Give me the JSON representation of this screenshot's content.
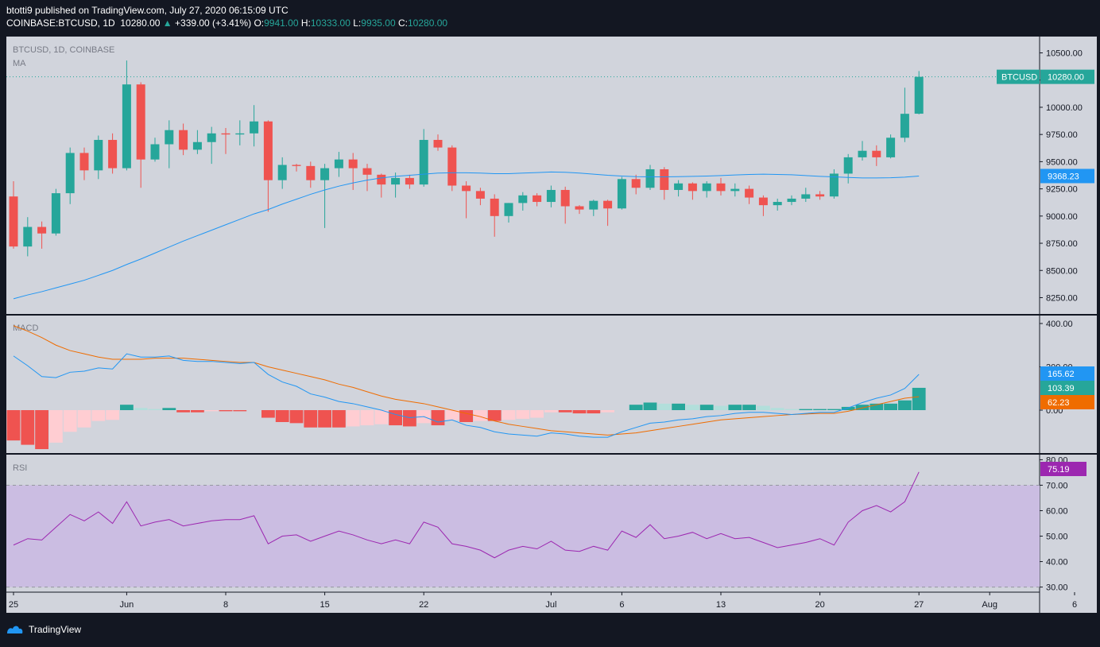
{
  "header": {
    "line1": "btotti9 published on TradingView.com, July 27, 2020 06:15:09 UTC",
    "symbol": "COINBASE:BTCUSD, 1D",
    "last": "10280.00",
    "change": "+339.00 (+3.41%)",
    "o_label": "O:",
    "o": "9941.00",
    "h_label": "H:",
    "h": "10333.00",
    "l_label": "L:",
    "l": "9935.00",
    "c_label": "C:",
    "c": "10280.00"
  },
  "footer": {
    "brand": "TradingView"
  },
  "colors": {
    "up": "#26a69a",
    "down": "#ef5350",
    "bg": "#d1d4dc",
    "frame": "#131722",
    "ma": "#2196f3",
    "signal": "#ef6c00",
    "rsi": "#9c27b0",
    "hist_up_strong": "#26a69a",
    "hist_up_weak": "#b2dfdb",
    "hist_down_strong": "#ef5350",
    "hist_down_weak": "#ffcdd2",
    "rsi_band": "#cbbde2"
  },
  "chart_data": [
    {
      "type": "candlestick",
      "title": "BTCUSD, 1D, COINBASE",
      "indicator_label": "MA",
      "symbol_tag": "BTCUSD",
      "last_price_label": "10280.00",
      "ma_label": "9368.23",
      "ylim": [
        8100,
        10650
      ],
      "yticks": [
        8250,
        8500,
        8750,
        9000,
        9250,
        9500,
        9750,
        10000,
        10250,
        10500
      ],
      "ytick_labels": [
        "8250.00",
        "8500.00",
        "8750.00",
        "9000.00",
        "9250.00",
        "9500.00",
        "9750.00",
        "10000.00",
        "10250.00",
        "10500.00"
      ],
      "x_labels": [
        "25",
        "Jun",
        "8",
        "15",
        "22",
        "Jul",
        "6",
        "13",
        "20",
        "27",
        "Aug",
        "6"
      ],
      "x_label_index": [
        0,
        8,
        15,
        22,
        29,
        38,
        43,
        50,
        57,
        64,
        69,
        75
      ],
      "ohlc": [
        [
          9180,
          9320,
          8700,
          8720
        ],
        [
          8720,
          8990,
          8630,
          8900
        ],
        [
          8900,
          8950,
          8700,
          8840
        ],
        [
          8840,
          9250,
          8820,
          9210
        ],
        [
          9210,
          9630,
          9110,
          9580
        ],
        [
          9580,
          9630,
          9330,
          9420
        ],
        [
          9420,
          9740,
          9340,
          9700
        ],
        [
          9700,
          9760,
          9390,
          9440
        ],
        [
          9440,
          10430,
          9420,
          10210
        ],
        [
          10210,
          10230,
          9260,
          9520
        ],
        [
          9520,
          9720,
          9500,
          9660
        ],
        [
          9660,
          9880,
          9440,
          9790
        ],
        [
          9790,
          9850,
          9560,
          9610
        ],
        [
          9610,
          9790,
          9570,
          9680
        ],
        [
          9680,
          9820,
          9480,
          9760
        ],
        [
          9760,
          9810,
          9570,
          9750
        ],
        [
          9750,
          9880,
          9650,
          9760
        ],
        [
          9760,
          10020,
          9640,
          9870
        ],
        [
          9870,
          9880,
          9040,
          9330
        ],
        [
          9330,
          9540,
          9250,
          9470
        ],
        [
          9470,
          9480,
          9410,
          9460
        ],
        [
          9460,
          9500,
          9260,
          9330
        ],
        [
          9330,
          9480,
          8890,
          9440
        ],
        [
          9440,
          9590,
          9360,
          9520
        ],
        [
          9520,
          9580,
          9240,
          9440
        ],
        [
          9440,
          9480,
          9230,
          9380
        ],
        [
          9380,
          9390,
          9170,
          9290
        ],
        [
          9290,
          9400,
          9170,
          9350
        ],
        [
          9350,
          9380,
          9250,
          9290
        ],
        [
          9290,
          9800,
          9270,
          9700
        ],
        [
          9700,
          9750,
          9600,
          9630
        ],
        [
          9630,
          9650,
          9230,
          9280
        ],
        [
          9280,
          9320,
          8980,
          9230
        ],
        [
          9230,
          9260,
          9100,
          9160
        ],
        [
          9160,
          9200,
          8810,
          9000
        ],
        [
          9000,
          9120,
          8940,
          9120
        ],
        [
          9120,
          9220,
          9050,
          9190
        ],
        [
          9190,
          9210,
          9090,
          9130
        ],
        [
          9130,
          9280,
          9080,
          9240
        ],
        [
          9240,
          9270,
          8930,
          9090
        ],
        [
          9090,
          9100,
          9020,
          9060
        ],
        [
          9060,
          9150,
          9000,
          9140
        ],
        [
          9140,
          9150,
          8910,
          9070
        ],
        [
          9070,
          9360,
          9060,
          9340
        ],
        [
          9340,
          9380,
          9200,
          9260
        ],
        [
          9260,
          9470,
          9240,
          9430
        ],
        [
          9430,
          9450,
          9150,
          9240
        ],
        [
          9240,
          9330,
          9180,
          9300
        ],
        [
          9300,
          9310,
          9150,
          9230
        ],
        [
          9230,
          9320,
          9170,
          9300
        ],
        [
          9300,
          9350,
          9190,
          9230
        ],
        [
          9230,
          9300,
          9180,
          9250
        ],
        [
          9250,
          9280,
          9110,
          9170
        ],
        [
          9170,
          9190,
          9000,
          9100
        ],
        [
          9100,
          9160,
          9050,
          9130
        ],
        [
          9130,
          9190,
          9100,
          9160
        ],
        [
          9160,
          9260,
          9130,
          9200
        ],
        [
          9200,
          9230,
          9150,
          9180
        ],
        [
          9180,
          9430,
          9160,
          9390
        ],
        [
          9390,
          9570,
          9300,
          9540
        ],
        [
          9540,
          9690,
          9510,
          9600
        ],
        [
          9600,
          9650,
          9460,
          9540
        ],
        [
          9540,
          9750,
          9530,
          9720
        ],
        [
          9720,
          10180,
          9680,
          9940
        ],
        [
          9941,
          10333,
          9935,
          10280
        ]
      ],
      "ma": [
        8240,
        8275,
        8305,
        8340,
        8375,
        8410,
        8455,
        8500,
        8555,
        8605,
        8660,
        8715,
        8770,
        8820,
        8870,
        8920,
        8970,
        9020,
        9060,
        9110,
        9155,
        9200,
        9240,
        9275,
        9305,
        9330,
        9350,
        9365,
        9375,
        9385,
        9395,
        9398,
        9398,
        9395,
        9390,
        9390,
        9395,
        9400,
        9405,
        9402,
        9395,
        9385,
        9375,
        9368,
        9362,
        9360,
        9360,
        9362,
        9365,
        9368,
        9372,
        9378,
        9382,
        9385,
        9382,
        9380,
        9372,
        9365,
        9360,
        9355,
        9350,
        9350,
        9352,
        9358,
        9368
      ]
    },
    {
      "type": "macd",
      "indicator_label": "MACD",
      "ylim": [
        -420,
        420
      ],
      "yticks": [
        0,
        200,
        400
      ],
      "ytick_labels": [
        "0.00",
        "200.00",
        "400.00"
      ],
      "macd_label": "165.62",
      "hist_label": "103.39",
      "signal_label": "62.23",
      "macd": [
        250,
        205,
        155,
        150,
        175,
        180,
        195,
        190,
        260,
        245,
        245,
        250,
        230,
        225,
        225,
        220,
        215,
        220,
        165,
        130,
        110,
        75,
        60,
        40,
        30,
        15,
        0,
        -20,
        -35,
        -30,
        -55,
        -45,
        -70,
        -80,
        -100,
        -110,
        -115,
        -120,
        -105,
        -110,
        -120,
        -125,
        -125,
        -100,
        -80,
        -60,
        -55,
        -45,
        -40,
        -30,
        -25,
        -15,
        -10,
        -10,
        -15,
        -20,
        -15,
        -10,
        -10,
        10,
        35,
        55,
        70,
        100,
        165
      ],
      "signal": [
        390,
        365,
        335,
        300,
        275,
        260,
        245,
        235,
        235,
        235,
        240,
        240,
        240,
        235,
        230,
        225,
        220,
        220,
        200,
        185,
        170,
        155,
        140,
        120,
        105,
        85,
        65,
        50,
        40,
        30,
        15,
        0,
        -15,
        -30,
        -50,
        -65,
        -75,
        -85,
        -95,
        -100,
        -105,
        -110,
        -115,
        -110,
        -105,
        -95,
        -85,
        -75,
        -65,
        -55,
        -45,
        -40,
        -35,
        -30,
        -25,
        -20,
        -18,
        -15,
        -15,
        -5,
        10,
        25,
        40,
        55,
        62
      ],
      "hist": [
        -140,
        -160,
        -180,
        -150,
        -100,
        -80,
        -50,
        -45,
        25,
        10,
        5,
        10,
        -10,
        -10,
        -5,
        -5,
        -5,
        0,
        -35,
        -55,
        -60,
        -80,
        -80,
        -80,
        -75,
        -70,
        -65,
        -70,
        -75,
        -60,
        -70,
        -45,
        -55,
        -50,
        -50,
        -45,
        -40,
        -35,
        -10,
        -10,
        -15,
        -15,
        -10,
        0,
        25,
        35,
        30,
        30,
        25,
        25,
        20,
        25,
        25,
        20,
        10,
        5,
        5,
        5,
        5,
        15,
        25,
        30,
        30,
        45,
        103
      ]
    },
    {
      "type": "rsi",
      "indicator_label": "RSI",
      "ylim": [
        28,
        82
      ],
      "yticks": [
        30,
        40,
        50,
        60,
        70,
        80
      ],
      "ytick_labels": [
        "30.00",
        "40.00",
        "50.00",
        "60.00",
        "70.00",
        "80.00"
      ],
      "band": [
        30,
        70
      ],
      "rsi_label": "75.19",
      "rsi": [
        46.5,
        49,
        48.5,
        53.5,
        58.5,
        56,
        59.5,
        55,
        63.5,
        54,
        55.5,
        56.5,
        54,
        55,
        56,
        56.5,
        56.5,
        58,
        47,
        50,
        50.5,
        48,
        50,
        52,
        50.5,
        48.5,
        47,
        48.5,
        47,
        55.5,
        53.5,
        47,
        46,
        44.5,
        41.5,
        44.5,
        46,
        45,
        48,
        44.5,
        44,
        46,
        44.5,
        52,
        49.5,
        54.5,
        49,
        50,
        51.5,
        49,
        51,
        49,
        49.5,
        47.5,
        45.5,
        46.5,
        47.5,
        49,
        46.5,
        55.5,
        60,
        62,
        59.5,
        63.5,
        75.19
      ]
    }
  ]
}
